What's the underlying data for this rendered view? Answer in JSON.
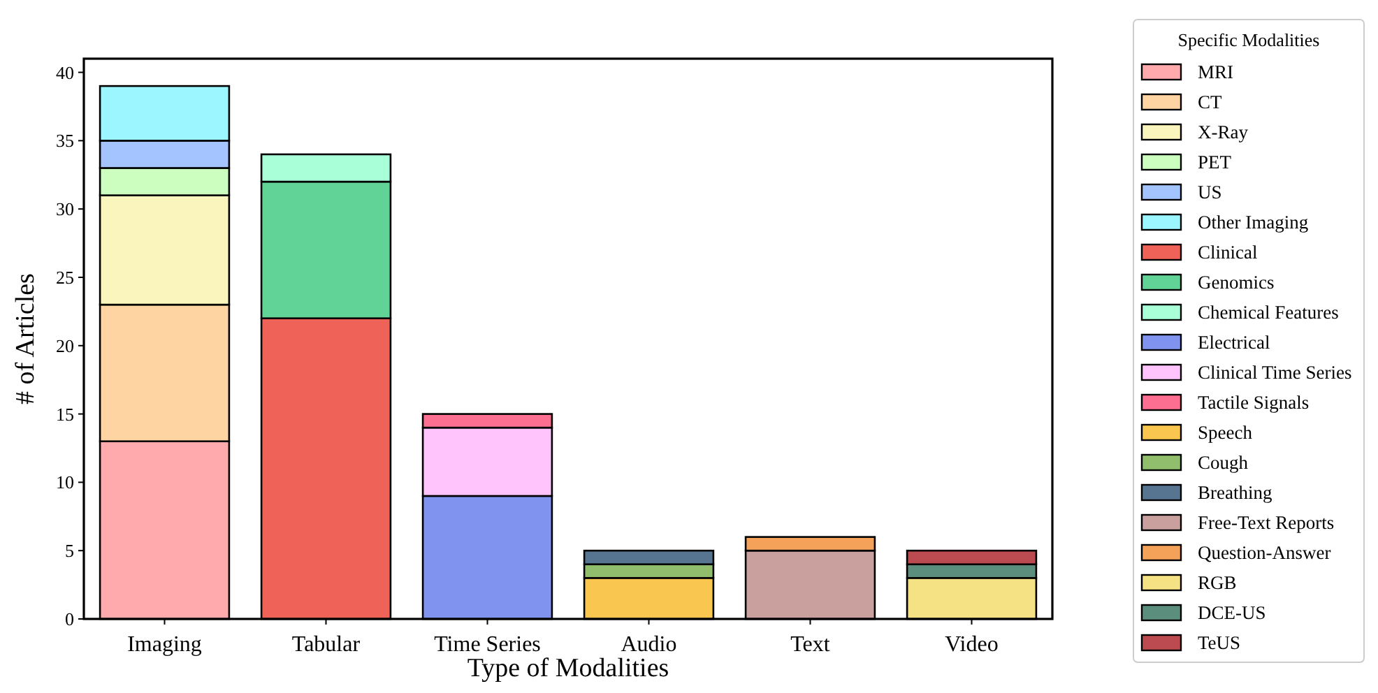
{
  "chart_data": {
    "type": "bar",
    "stacked": true,
    "xlabel": "Type of Modalities",
    "ylabel": "# of Articles",
    "legend_title": "Specific Modalities",
    "legend": "right",
    "grid": false,
    "categories": [
      "Imaging",
      "Tabular",
      "Time Series",
      "Audio",
      "Text",
      "Video"
    ],
    "ylim": [
      0,
      41
    ],
    "yticks": [
      0,
      5,
      10,
      15,
      20,
      25,
      30,
      35,
      40
    ],
    "series": [
      {
        "name": "MRI",
        "color": "#ffaaad",
        "values": [
          13,
          null,
          null,
          null,
          null,
          null
        ]
      },
      {
        "name": "CT",
        "color": "#ffd4a3",
        "values": [
          10,
          null,
          null,
          null,
          null,
          null
        ]
      },
      {
        "name": "X-Ray",
        "color": "#faf4bd",
        "values": [
          8,
          null,
          null,
          null,
          null,
          null
        ]
      },
      {
        "name": "PET",
        "color": "#ccffbf",
        "values": [
          2,
          null,
          null,
          null,
          null,
          null
        ]
      },
      {
        "name": "US",
        "color": "#a3c4ff",
        "values": [
          2,
          null,
          null,
          null,
          null,
          null
        ]
      },
      {
        "name": "Other Imaging",
        "color": "#9cf6ff",
        "values": [
          4,
          null,
          null,
          null,
          null,
          null
        ]
      },
      {
        "name": "Clinical",
        "color": "#ee6257",
        "values": [
          null,
          22,
          null,
          null,
          null,
          null
        ]
      },
      {
        "name": "Genomics",
        "color": "#62d396",
        "values": [
          null,
          10,
          null,
          null,
          null,
          null
        ]
      },
      {
        "name": "Chemical Features",
        "color": "#a8ffd8",
        "values": [
          null,
          2,
          null,
          null,
          null,
          null
        ]
      },
      {
        "name": "Electrical",
        "color": "#8094ef",
        "values": [
          null,
          null,
          9,
          null,
          null,
          null
        ]
      },
      {
        "name": "Clinical Time Series",
        "color": "#ffc4fc",
        "values": [
          null,
          null,
          5,
          null,
          null,
          null
        ]
      },
      {
        "name": "Tactile Signals",
        "color": "#fd6f91",
        "values": [
          null,
          null,
          1,
          null,
          null,
          null
        ]
      },
      {
        "name": "Speech",
        "color": "#f9c74f",
        "values": [
          null,
          null,
          null,
          3,
          null,
          null
        ]
      },
      {
        "name": "Cough",
        "color": "#90be6d",
        "values": [
          null,
          null,
          null,
          1,
          null,
          null
        ]
      },
      {
        "name": "Breathing",
        "color": "#577590",
        "values": [
          null,
          null,
          null,
          1,
          null,
          null
        ]
      },
      {
        "name": "Free-Text Reports",
        "color": "#c9a09d",
        "values": [
          null,
          null,
          null,
          null,
          5,
          null
        ]
      },
      {
        "name": "Question-Answer",
        "color": "#f4a259",
        "values": [
          null,
          null,
          null,
          null,
          1,
          null
        ]
      },
      {
        "name": "RGB",
        "color": "#f5e285",
        "values": [
          null,
          null,
          null,
          null,
          null,
          3
        ]
      },
      {
        "name": "DCE-US",
        "color": "#5b8e7d",
        "values": [
          null,
          null,
          null,
          null,
          null,
          1
        ]
      },
      {
        "name": "TeUS",
        "color": "#bc4b51",
        "values": [
          null,
          null,
          null,
          null,
          null,
          1
        ]
      }
    ]
  }
}
